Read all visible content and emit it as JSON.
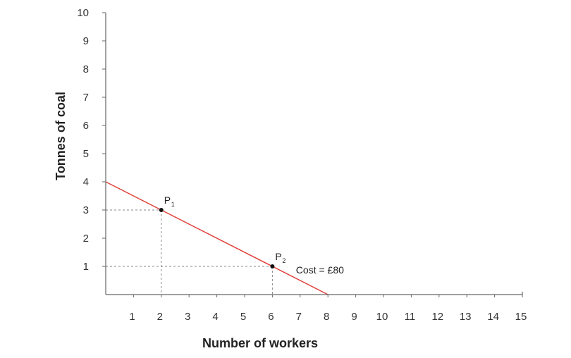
{
  "chart_data": {
    "type": "line",
    "xlabel": "Number of workers",
    "ylabel": "Tonnes of coal",
    "xlim": [
      0,
      15
    ],
    "ylim": [
      0,
      10
    ],
    "x_ticks": [
      1,
      2,
      3,
      4,
      5,
      6,
      7,
      8,
      9,
      10,
      11,
      12,
      13,
      14,
      15
    ],
    "y_ticks": [
      1,
      2,
      3,
      4,
      5,
      6,
      7,
      8,
      9,
      10
    ],
    "grid": false,
    "series": [
      {
        "name": "Cost = £80",
        "color": "#e0403a",
        "x": [
          0,
          8
        ],
        "y": [
          4,
          0
        ]
      }
    ],
    "points": [
      {
        "label": "P",
        "sub": "1",
        "x": 2,
        "y": 3
      },
      {
        "label": "P",
        "sub": "2",
        "x": 6,
        "y": 1
      }
    ],
    "annotations": [
      {
        "text": "Cost = £80",
        "x": 7,
        "y": 0.8
      }
    ]
  }
}
